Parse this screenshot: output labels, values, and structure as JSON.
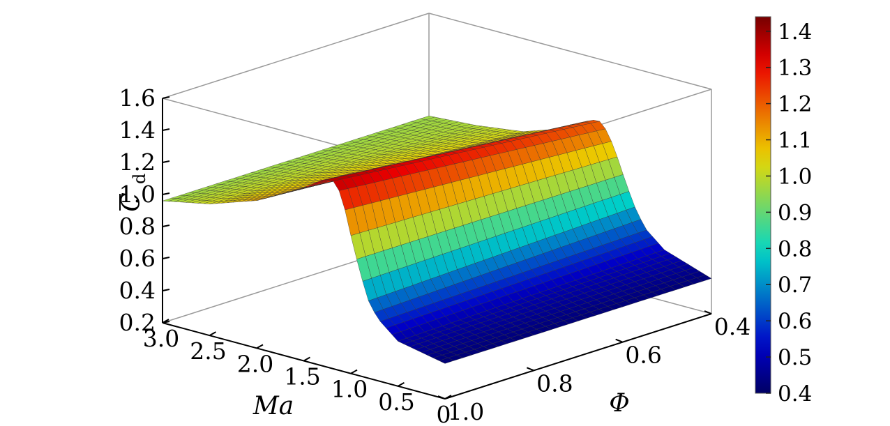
{
  "chart_data": {
    "type": "surface",
    "zlabel": "C",
    "zlabel_subscript": "d",
    "xlabel": "Ma",
    "ylabel": "Φ",
    "x_ticks": [
      "3.0",
      "2.5",
      "2.0",
      "1.5",
      "1.0",
      "0.5",
      "0"
    ],
    "y_ticks": [
      "1.0",
      "0.8",
      "0.6",
      "0.4"
    ],
    "z_ticks": [
      "0.2",
      "0.4",
      "0.6",
      "0.8",
      "1.0",
      "1.2",
      "1.4",
      "1.6"
    ],
    "xlim": [
      0,
      3
    ],
    "ylim": [
      0.4,
      1.0
    ],
    "zlim": [
      0.2,
      1.6
    ],
    "colormap": "jet",
    "colorbar_ticks": [
      "0.4",
      "0.5",
      "0.6",
      "0.7",
      "0.8",
      "0.9",
      "1.0",
      "1.1",
      "1.2",
      "1.3",
      "1.4"
    ],
    "colorbar_range": [
      0.4,
      1.44
    ],
    "grid": "box edges only",
    "surface_profile_ma": {
      "ma": [
        0,
        0.5,
        0.7,
        0.8,
        0.9,
        1.0,
        1.1,
        1.2,
        1.3,
        1.5,
        2.0,
        2.5,
        3.0
      ],
      "cd_at_phi_1_0": [
        0.42,
        0.48,
        0.58,
        0.66,
        0.84,
        1.06,
        1.3,
        1.38,
        1.36,
        1.28,
        1.12,
        1.02,
        0.96
      ],
      "cd_at_phi_0_4": [
        0.42,
        0.52,
        0.62,
        0.72,
        0.86,
        1.02,
        1.16,
        1.22,
        1.2,
        1.12,
        1.02,
        0.98,
        0.96
      ]
    }
  }
}
